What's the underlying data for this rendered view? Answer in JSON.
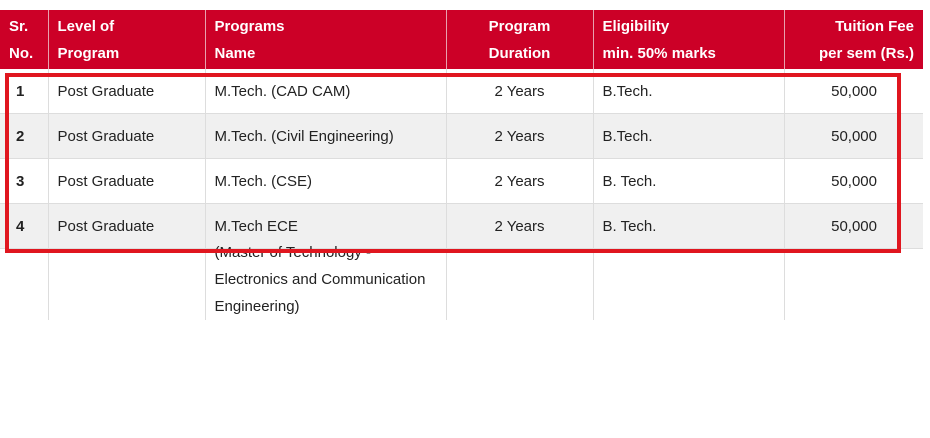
{
  "table": {
    "headers": {
      "sr": [
        "Sr.",
        "No."
      ],
      "level": [
        "Level of",
        "Program"
      ],
      "program": [
        "Programs",
        "Name"
      ],
      "duration": [
        "Program",
        "Duration"
      ],
      "eligibility": [
        "Eligibility",
        "min. 50% marks"
      ],
      "fee": [
        "Tuition Fee",
        "per sem (Rs.)"
      ]
    },
    "rows": [
      {
        "sr": "1",
        "level": "Post Graduate",
        "program": "M.Tech. (CAD CAM)",
        "duration": "2 Years",
        "eligibility": "B.Tech.",
        "fee": "50,000"
      },
      {
        "sr": "2",
        "level": "Post Graduate",
        "program": "M.Tech. (Civil Engineering)",
        "duration": "2 Years",
        "eligibility": "B.Tech.",
        "fee": "50,000"
      },
      {
        "sr": "3",
        "level": "Post Graduate",
        "program": "M.Tech. (CSE)",
        "duration": "2 Years",
        "eligibility": "B. Tech.",
        "fee": "50,000"
      },
      {
        "sr": "4",
        "level": "Post Graduate",
        "program": "M.Tech ECE",
        "duration": "2 Years",
        "eligibility": "B. Tech.",
        "fee": "50,000"
      }
    ],
    "row4_continuation": [
      "(Master of Technology -",
      "Electronics and Communication",
      "Engineering)"
    ]
  },
  "colors": {
    "header_bg": "#cc0027",
    "header_text": "#ffffff",
    "highlight_border": "#e0161f",
    "alt_row_bg": "#f0f0f0"
  }
}
